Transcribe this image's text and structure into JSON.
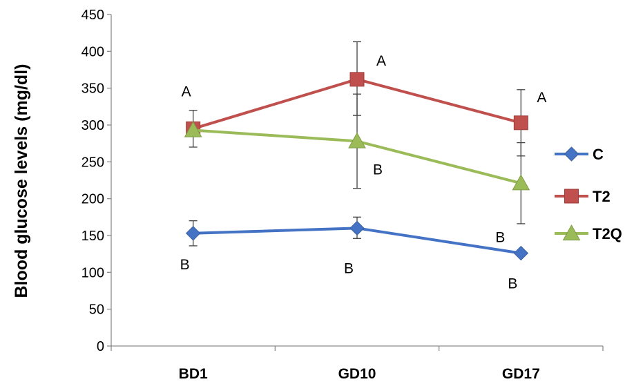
{
  "chart_data": {
    "type": "line",
    "ylabel": "Blood glucose levels (mg/dl)",
    "xlabel": "",
    "ylim": [
      0,
      450
    ],
    "yticks": [
      0,
      50,
      100,
      150,
      200,
      250,
      300,
      350,
      400,
      450
    ],
    "categories": [
      "BD1",
      "GD10",
      "GD17"
    ],
    "grid": false,
    "legend_position": "right",
    "series": [
      {
        "name": "C",
        "color": "#4472C4",
        "marker": "diamond",
        "values": [
          153,
          160,
          126
        ],
        "error_low": [
          136,
          146,
          126
        ],
        "error_high": [
          170,
          175,
          126
        ],
        "labels": [
          "B",
          "B",
          "B"
        ],
        "label_side": "below"
      },
      {
        "name": "T2",
        "color": "#C0504D",
        "marker": "square",
        "values": [
          295,
          362,
          303
        ],
        "error_low": [
          270,
          313,
          258
        ],
        "error_high": [
          320,
          413,
          348
        ],
        "labels": [
          "A",
          "A",
          "A"
        ],
        "label_side": "above"
      },
      {
        "name": "T2Q",
        "color": "#9BBB59",
        "marker": "triangle",
        "values": [
          293,
          278,
          221
        ],
        "error_low": [
          293,
          214,
          166
        ],
        "error_high": [
          293,
          342,
          276
        ],
        "labels": [
          "",
          "B",
          "B"
        ],
        "label_side": "mixed"
      }
    ]
  }
}
